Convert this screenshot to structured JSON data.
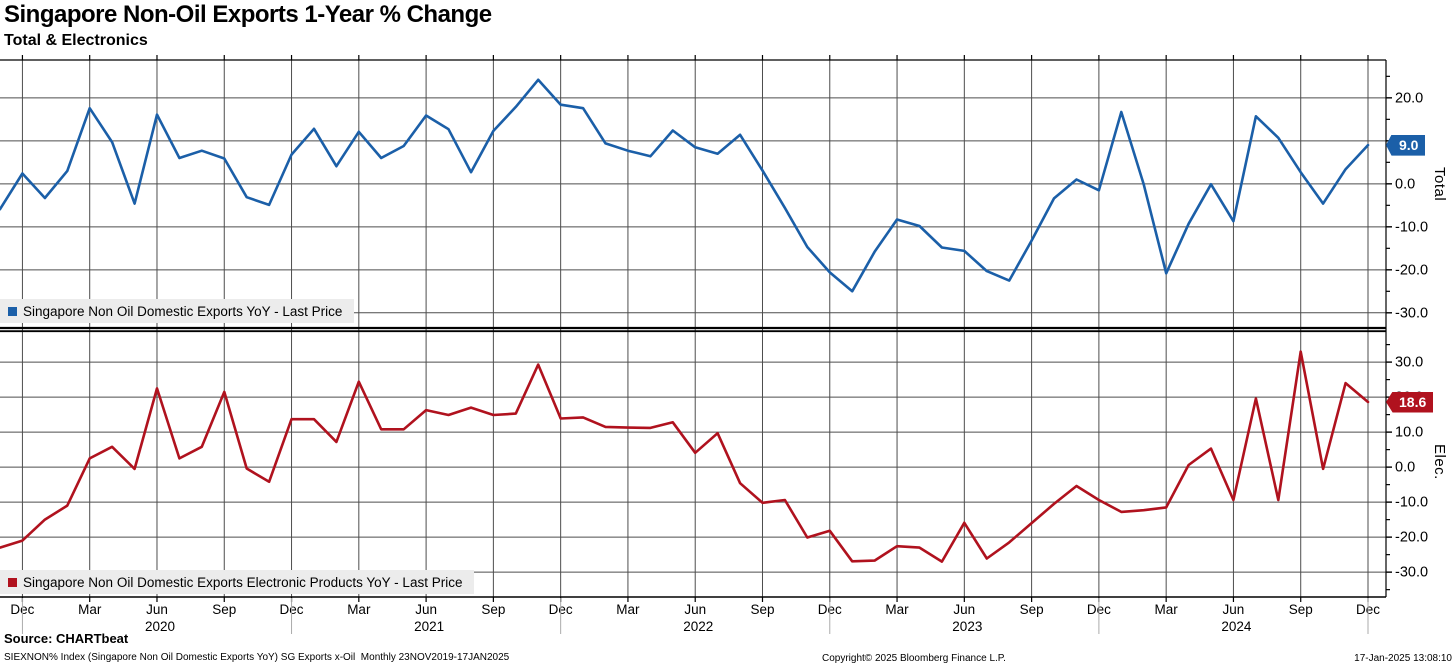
{
  "header": {
    "title": "Singapore Non-Oil Exports 1-Year % Change",
    "subtitle": "Total & Electronics"
  },
  "footer": {
    "source": "Source: CHARTbeat",
    "ticker": "SIEXNON% Index (Singapore Non Oil Domestic Exports YoY) SG Exports x-Oil  Monthly 23NOV2019-17JAN2025",
    "copyright": "Copyright© 2025 Bloomberg Finance L.P.",
    "datetime": "17-Jan-2025 13:08:10"
  },
  "chart_data": {
    "type": "line",
    "frequency": "monthly",
    "x_start": "Nov 2019",
    "x_end": "Dec 2024",
    "grid": true,
    "x_tick_labels": [
      "Dec",
      "Mar",
      "Jun",
      "Sep",
      "Dec",
      "Mar",
      "Jun",
      "Sep",
      "Dec",
      "Mar",
      "Jun",
      "Sep",
      "Dec",
      "Mar",
      "Jun",
      "Sep",
      "Dec",
      "Mar",
      "Jun",
      "Sep",
      "Dec"
    ],
    "x_tick_month_indexes": [
      1,
      4,
      7,
      10,
      13,
      16,
      19,
      22,
      25,
      28,
      31,
      34,
      37,
      40,
      43,
      46,
      49,
      52,
      55,
      58,
      61
    ],
    "year_labels": [
      {
        "text": "2020",
        "month_index": 7
      },
      {
        "text": "2021",
        "month_index": 19
      },
      {
        "text": "2022",
        "month_index": 31
      },
      {
        "text": "2023",
        "month_index": 43
      },
      {
        "text": "2024",
        "month_index": 55
      }
    ],
    "dec_separator_month_indexes": [
      1,
      13,
      25,
      37,
      49,
      61
    ],
    "panels": [
      {
        "axis_label": "Total",
        "legend": "Singapore Non Oil Domestic Exports YoY - Last Price",
        "color": "#1b5fa8",
        "last_price": "9.0",
        "last_value": 9.0,
        "ylim": [
          -33.3,
          28.8
        ],
        "yticks": [
          20,
          10,
          0,
          -10,
          -20,
          -30
        ],
        "values": [
          -5.9,
          2.4,
          -3.3,
          3.0,
          17.6,
          9.7,
          -4.6,
          16.1,
          6.0,
          7.7,
          5.9,
          -3.1,
          -4.9,
          6.8,
          12.8,
          4.1,
          12.1,
          6.0,
          8.8,
          15.9,
          12.7,
          2.7,
          12.3,
          17.9,
          24.2,
          18.4,
          17.6,
          9.4,
          7.7,
          6.4,
          12.4,
          8.5,
          7.0,
          11.4,
          3.1,
          -5.6,
          -14.7,
          -20.6,
          -25.0,
          -15.8,
          -8.3,
          -9.8,
          -14.8,
          -15.6,
          -20.3,
          -22.5,
          -13.2,
          -3.4,
          1.0,
          -1.5,
          16.7,
          -0.1,
          -20.8,
          -9.3,
          -0.1,
          -8.7,
          15.7,
          10.7,
          2.7,
          -4.6,
          3.4,
          9.0
        ]
      },
      {
        "axis_label": "Elec.",
        "legend": "Singapore Non Oil Domestic Exports Electronic Products YoY - Last Price",
        "color": "#b0121e",
        "last_price": "18.6",
        "last_value": 18.6,
        "ylim": [
          -37.1,
          38.6
        ],
        "yticks": [
          30,
          20,
          10,
          0,
          -10,
          -20,
          -30
        ],
        "values": [
          -23.0,
          -21.0,
          -15.0,
          -11.0,
          2.5,
          5.8,
          -0.5,
          22.5,
          2.5,
          5.8,
          21.5,
          -0.4,
          -4.2,
          13.7,
          13.7,
          7.2,
          24.4,
          10.8,
          10.8,
          16.3,
          14.9,
          17.0,
          14.9,
          15.3,
          29.3,
          13.9,
          14.2,
          11.5,
          11.3,
          11.2,
          12.8,
          4.1,
          9.7,
          -4.6,
          -10.2,
          -9.4,
          -20.1,
          -18.2,
          -26.9,
          -26.7,
          -22.6,
          -23.0,
          -27.0,
          -15.9,
          -26.1,
          -21.5,
          -16.0,
          -10.5,
          -5.4,
          -9.4,
          -12.8,
          -12.3,
          -11.5,
          0.6,
          5.3,
          -9.4,
          19.6,
          -9.4,
          33.0,
          -0.5,
          24.0,
          18.6
        ]
      }
    ]
  }
}
